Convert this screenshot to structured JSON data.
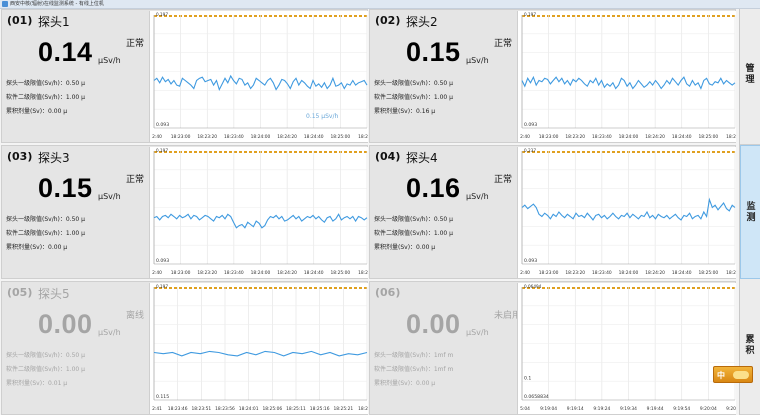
{
  "window": {
    "title": "西安中核(辐射)在线监测系统 - 有线上位机"
  },
  "sidebar": [
    {
      "label": "管理",
      "active": false
    },
    {
      "label": "监测",
      "active": true
    },
    {
      "label": "累积",
      "active": false
    }
  ],
  "ime": {
    "label": "中"
  },
  "probes": [
    {
      "id": "(01)",
      "name": "探头1",
      "status": "正常",
      "value": "0.14",
      "unit": "μSv/h",
      "line1": "探头一级限值(Sv/h)：0.50 μ",
      "line2": "软件二级限值(Sv/h)：1.00 μ",
      "line3": "累积剂量(Sv)：0.00 μ",
      "offline": false,
      "chart": {
        "ymax": "0.197",
        "ymin": "0.093",
        "annotation": "0.15 μSv/h",
        "ticks": [
          "2:40",
          "18:23:00",
          "18:23:20",
          "18:23:40",
          "18:24:00",
          "18:24:20",
          "18:24:40",
          "18:25:00",
          "18:2"
        ],
        "series": [
          0.15,
          0.152,
          0.148,
          0.153,
          0.149,
          0.151,
          0.147,
          0.15,
          0.146,
          0.145,
          0.152,
          0.15,
          0.148,
          0.146,
          0.143,
          0.15,
          0.152,
          0.153,
          0.149,
          0.15,
          0.151,
          0.146,
          0.15,
          0.142,
          0.147,
          0.152,
          0.148,
          0.154,
          0.15,
          0.147,
          0.152,
          0.151,
          0.146,
          0.148,
          0.143,
          0.146,
          0.152,
          0.15,
          0.148,
          0.146,
          0.15,
          0.152,
          0.148,
          0.142,
          0.146,
          0.151,
          0.15,
          0.147,
          0.143,
          0.149,
          0.152,
          0.146,
          0.15,
          0.148,
          0.145,
          0.143,
          0.15,
          0.145,
          0.147,
          0.144,
          0.148,
          0.143,
          0.146,
          0.152,
          0.145,
          0.146,
          0.148,
          0.143,
          0.147,
          0.146,
          0.15,
          0.146,
          0.148,
          0.149,
          0.15,
          0.146
        ]
      }
    },
    {
      "id": "(02)",
      "name": "探头2",
      "status": "正常",
      "value": "0.15",
      "unit": "μSv/h",
      "line1": "探头一级限值(Sv/h)：0.50 μ",
      "line2": "软件二级限值(Sv/h)：1.00 μ",
      "line3": "累积剂量(Sv)：0.16 μ",
      "offline": false,
      "chart": {
        "ymax": "0.197",
        "ymin": "0.093",
        "annotation": "",
        "ticks": [
          "2:40",
          "18:23:00",
          "18:23:20",
          "18:23:40",
          "18:24:00",
          "18:24:20",
          "18:24:40",
          "18:25:00",
          "18:2"
        ],
        "series": [
          0.15,
          0.145,
          0.152,
          0.148,
          0.153,
          0.146,
          0.15,
          0.149,
          0.152,
          0.151,
          0.147,
          0.15,
          0.153,
          0.149,
          0.152,
          0.147,
          0.15,
          0.146,
          0.151,
          0.149,
          0.152,
          0.15,
          0.147,
          0.145,
          0.15,
          0.148,
          0.152,
          0.146,
          0.15,
          0.144,
          0.147,
          0.145,
          0.148,
          0.143,
          0.146,
          0.152,
          0.15,
          0.145,
          0.148,
          0.143,
          0.146,
          0.15,
          0.147,
          0.144,
          0.146,
          0.149,
          0.146,
          0.15,
          0.147,
          0.143,
          0.146,
          0.15,
          0.147,
          0.152,
          0.149,
          0.146,
          0.15,
          0.153,
          0.147,
          0.145,
          0.15,
          0.146,
          0.148,
          0.143,
          0.15,
          0.152,
          0.147,
          0.146,
          0.149,
          0.148,
          0.152,
          0.147,
          0.15,
          0.148,
          0.146,
          0.148
        ]
      }
    },
    {
      "id": "(03)",
      "name": "探头3",
      "status": "正常",
      "value": "0.15",
      "unit": "μSv/h",
      "line1": "探头一级限值(Sv/h)：0.50 μ",
      "line2": "软件二级限值(Sv/h)：1.00 μ",
      "line3": "累积剂量(Sv)：0.00 μ",
      "offline": false,
      "chart": {
        "ymax": "0.197",
        "ymin": "0.093",
        "annotation": "",
        "ticks": [
          "2:40",
          "18:23:00",
          "18:23:20",
          "18:23:40",
          "18:24:00",
          "18:24:20",
          "18:24:40",
          "18:25:00",
          "18:2"
        ],
        "series": [
          0.149,
          0.15,
          0.147,
          0.15,
          0.151,
          0.149,
          0.152,
          0.15,
          0.148,
          0.151,
          0.149,
          0.15,
          0.152,
          0.148,
          0.151,
          0.15,
          0.147,
          0.149,
          0.151,
          0.15,
          0.148,
          0.146,
          0.15,
          0.149,
          0.151,
          0.148,
          0.152,
          0.15,
          0.145,
          0.14,
          0.142,
          0.143,
          0.14,
          0.145,
          0.143,
          0.141,
          0.146,
          0.144,
          0.14,
          0.142,
          0.147,
          0.15,
          0.149,
          0.151,
          0.148,
          0.15,
          0.146,
          0.147,
          0.149,
          0.151,
          0.148,
          0.15,
          0.146,
          0.148,
          0.15,
          0.149,
          0.151,
          0.148,
          0.15,
          0.147,
          0.145,
          0.149,
          0.15,
          0.146,
          0.148,
          0.152,
          0.147,
          0.149,
          0.15,
          0.148,
          0.15,
          0.146,
          0.15,
          0.149,
          0.147,
          0.149
        ]
      }
    },
    {
      "id": "(04)",
      "name": "探头4",
      "status": "正常",
      "value": "0.16",
      "unit": "μSv/h",
      "line1": "探头一级限值(Sv/h)：0.50 μ",
      "line2": "软件二级限值(Sv/h)：1.00 μ",
      "line3": "累积剂量(Sv)：0.00 μ",
      "offline": false,
      "chart": {
        "ymax": "0.237",
        "ymin": "0.093",
        "annotation": "",
        "ticks": [
          "2:40",
          "18:23:00",
          "18:23:20",
          "18:23:40",
          "18:24:00",
          "18:24:20",
          "18:24:40",
          "18:25:00",
          "18:2"
        ],
        "series": [
          0.158,
          0.16,
          0.157,
          0.159,
          0.161,
          0.158,
          0.152,
          0.15,
          0.153,
          0.151,
          0.148,
          0.152,
          0.15,
          0.154,
          0.151,
          0.149,
          0.152,
          0.15,
          0.148,
          0.153,
          0.15,
          0.151,
          0.149,
          0.153,
          0.15,
          0.147,
          0.151,
          0.152,
          0.149,
          0.151,
          0.148,
          0.15,
          0.153,
          0.15,
          0.148,
          0.151,
          0.15,
          0.153,
          0.149,
          0.152,
          0.15,
          0.148,
          0.151,
          0.15,
          0.154,
          0.149,
          0.151,
          0.148,
          0.152,
          0.15,
          0.149,
          0.151,
          0.148,
          0.15,
          0.152,
          0.149,
          0.147,
          0.151,
          0.15,
          0.153,
          0.148,
          0.15,
          0.151,
          0.148,
          0.154,
          0.15,
          0.165,
          0.158,
          0.16,
          0.156,
          0.159,
          0.162,
          0.157,
          0.155,
          0.16,
          0.158
        ]
      }
    },
    {
      "id": "(05)",
      "name": "探头5",
      "status": "离线",
      "value": "0.00",
      "unit": "μSv/h",
      "line1": "探头一级限值(Sv/h)：0.50 μ",
      "line2": "软件二级限值(Sv/h)：1.00 μ",
      "line3": "累积剂量(Sv)：0.01 μ",
      "offline": true,
      "chart": {
        "ymax": "0.197",
        "ymin": "0.115",
        "annotation": "",
        "ticks": [
          "2:41",
          "18:23:46",
          "18:23:51",
          "18:23:56",
          "18:24:01",
          "18:25:06",
          "18:25:11",
          "18:25:16",
          "18:25:21",
          "18:2"
        ],
        "series": [
          0.15,
          0.149,
          0.15,
          0.147,
          0.15,
          0.149,
          0.151,
          0.15,
          0.148,
          0.147,
          0.15,
          0.148,
          0.151,
          0.15,
          0.147,
          0.15,
          0.149,
          0.151,
          0.148,
          0.15,
          0.147,
          0.149,
          0.148,
          0.15
        ]
      }
    },
    {
      "id": "(06)",
      "name": "",
      "status": "未启用",
      "value": "0.00",
      "unit": "μSv/h",
      "line1": "探头一级限值(Sv/h)：1mf m",
      "line2": "软件二级限值(Sv/h)：1mf m",
      "line3": "累积剂量(Sv)：0.00 μ",
      "offline": true,
      "chart": {
        "ymax": "0.06494",
        "ymin": "0.0658834",
        "annotation": "",
        "ylabel_mid": "0.1",
        "ticks": [
          "5:04",
          "9:19:04",
          "9:19:14",
          "9:19:24",
          "9:19:34",
          "9:19:44",
          "9:19:54",
          "9:20:04",
          "9:20"
        ],
        "series": []
      }
    }
  ]
}
